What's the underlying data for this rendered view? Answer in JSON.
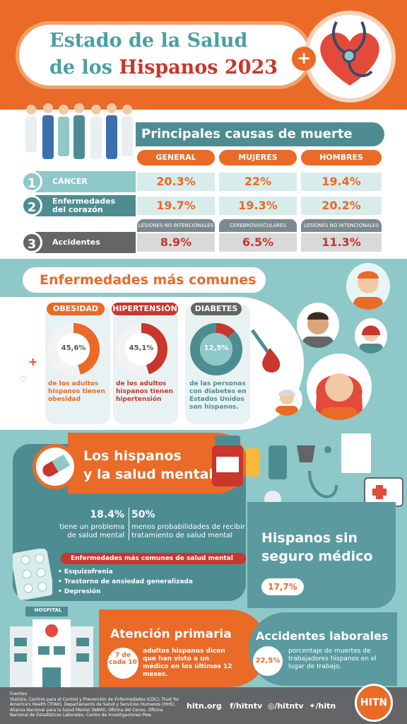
{
  "header": {
    "title_line1": "Estado de la Salud",
    "title_line2_pre": "de los ",
    "title_line2_accent": "Hispanos 2023"
  },
  "causes": {
    "title": "Principales causas de muerte",
    "columns": [
      "GENERAL",
      "MUJERES",
      "HOMBRES"
    ],
    "rows": [
      {
        "num": "1",
        "label": "CÁNCER",
        "values": [
          "20.3%",
          "22%",
          "19.4%"
        ]
      },
      {
        "num": "2",
        "label": "Enfermedades del corazón",
        "label_l1": "Enfermedades",
        "label_l2": "del corazón",
        "values": [
          "19.7%",
          "19.3%",
          "20.2%"
        ]
      },
      {
        "num": "3",
        "label": "Accidentes",
        "sublabels": [
          "LESIONES NO INTENCIONALES",
          "CEREBROVASCULARES",
          "LESIONES NO INTENCIONALES"
        ],
        "values": [
          "8.9%",
          "6.5%",
          "11.3%"
        ]
      }
    ]
  },
  "common": {
    "title": "Enfermedades más comunes",
    "cards": [
      {
        "tag": "OBESIDAD",
        "value": "45,6%",
        "pct": 45.6,
        "text": "de los adultos hispanos tienen obesidad",
        "color": "#ea6a28"
      },
      {
        "tag": "HIPERTENSIÓN",
        "value": "45,1%",
        "pct": 45.1,
        "text": "de los adultos hispanos tienen hipertensión",
        "color": "#c9362b"
      },
      {
        "tag": "DIABETES",
        "value": "12,5%",
        "pct": 12.5,
        "text": "de las personas con diabetes en Estados Unidos son hispanos.",
        "color": "#4d8d92"
      }
    ]
  },
  "mental": {
    "title_l1": "Los hispanos",
    "title_l2": "y la salud mental",
    "stat1_value": "18.4%",
    "stat1_text": "tiene un problema de salud mental",
    "stat2_value": "50%",
    "stat2_text": "menos probabilidades de recibir tratamiento de salud mental",
    "list_title": "Enfermedades más comunes de salud mental",
    "list": [
      "Esquizofrenia",
      "Trastorno de ansiedad generalizada",
      "Depresión"
    ]
  },
  "insurance": {
    "title_l1": "Hispanos sin",
    "title_l2": "seguro médico",
    "value": "17,7%"
  },
  "primary": {
    "hospital_sign": "HOSPITAL",
    "title": "Atención primaria",
    "badge": "7 de cada 10",
    "text": "adultos hispanos dicen que han visto a un médico en los últimos 12 meses."
  },
  "labor": {
    "title": "Accidentes laborales",
    "value": "22,5%",
    "text": "porcentaje de muertes de trabajadores hispanos en el lugar de trabajo."
  },
  "footer": {
    "sources": "Fuentes:\nStatista, Centros para el Control y Prevención de Enfermedades (CDC), Trust for America's Health (TFAH), Departamento de Salud y Servicios Humanos (HHS), Alianza Nacional para la Salud Mental (NAMI), Oficina del Censo, Oficina Nacional de Estadísticas Laborales, Centro de Investigaciones Pew.",
    "site": "hitn.org",
    "facebook": "/hitntv",
    "instagram": "/hitntv",
    "twitter": "/hitn",
    "logo": "HITN"
  }
}
